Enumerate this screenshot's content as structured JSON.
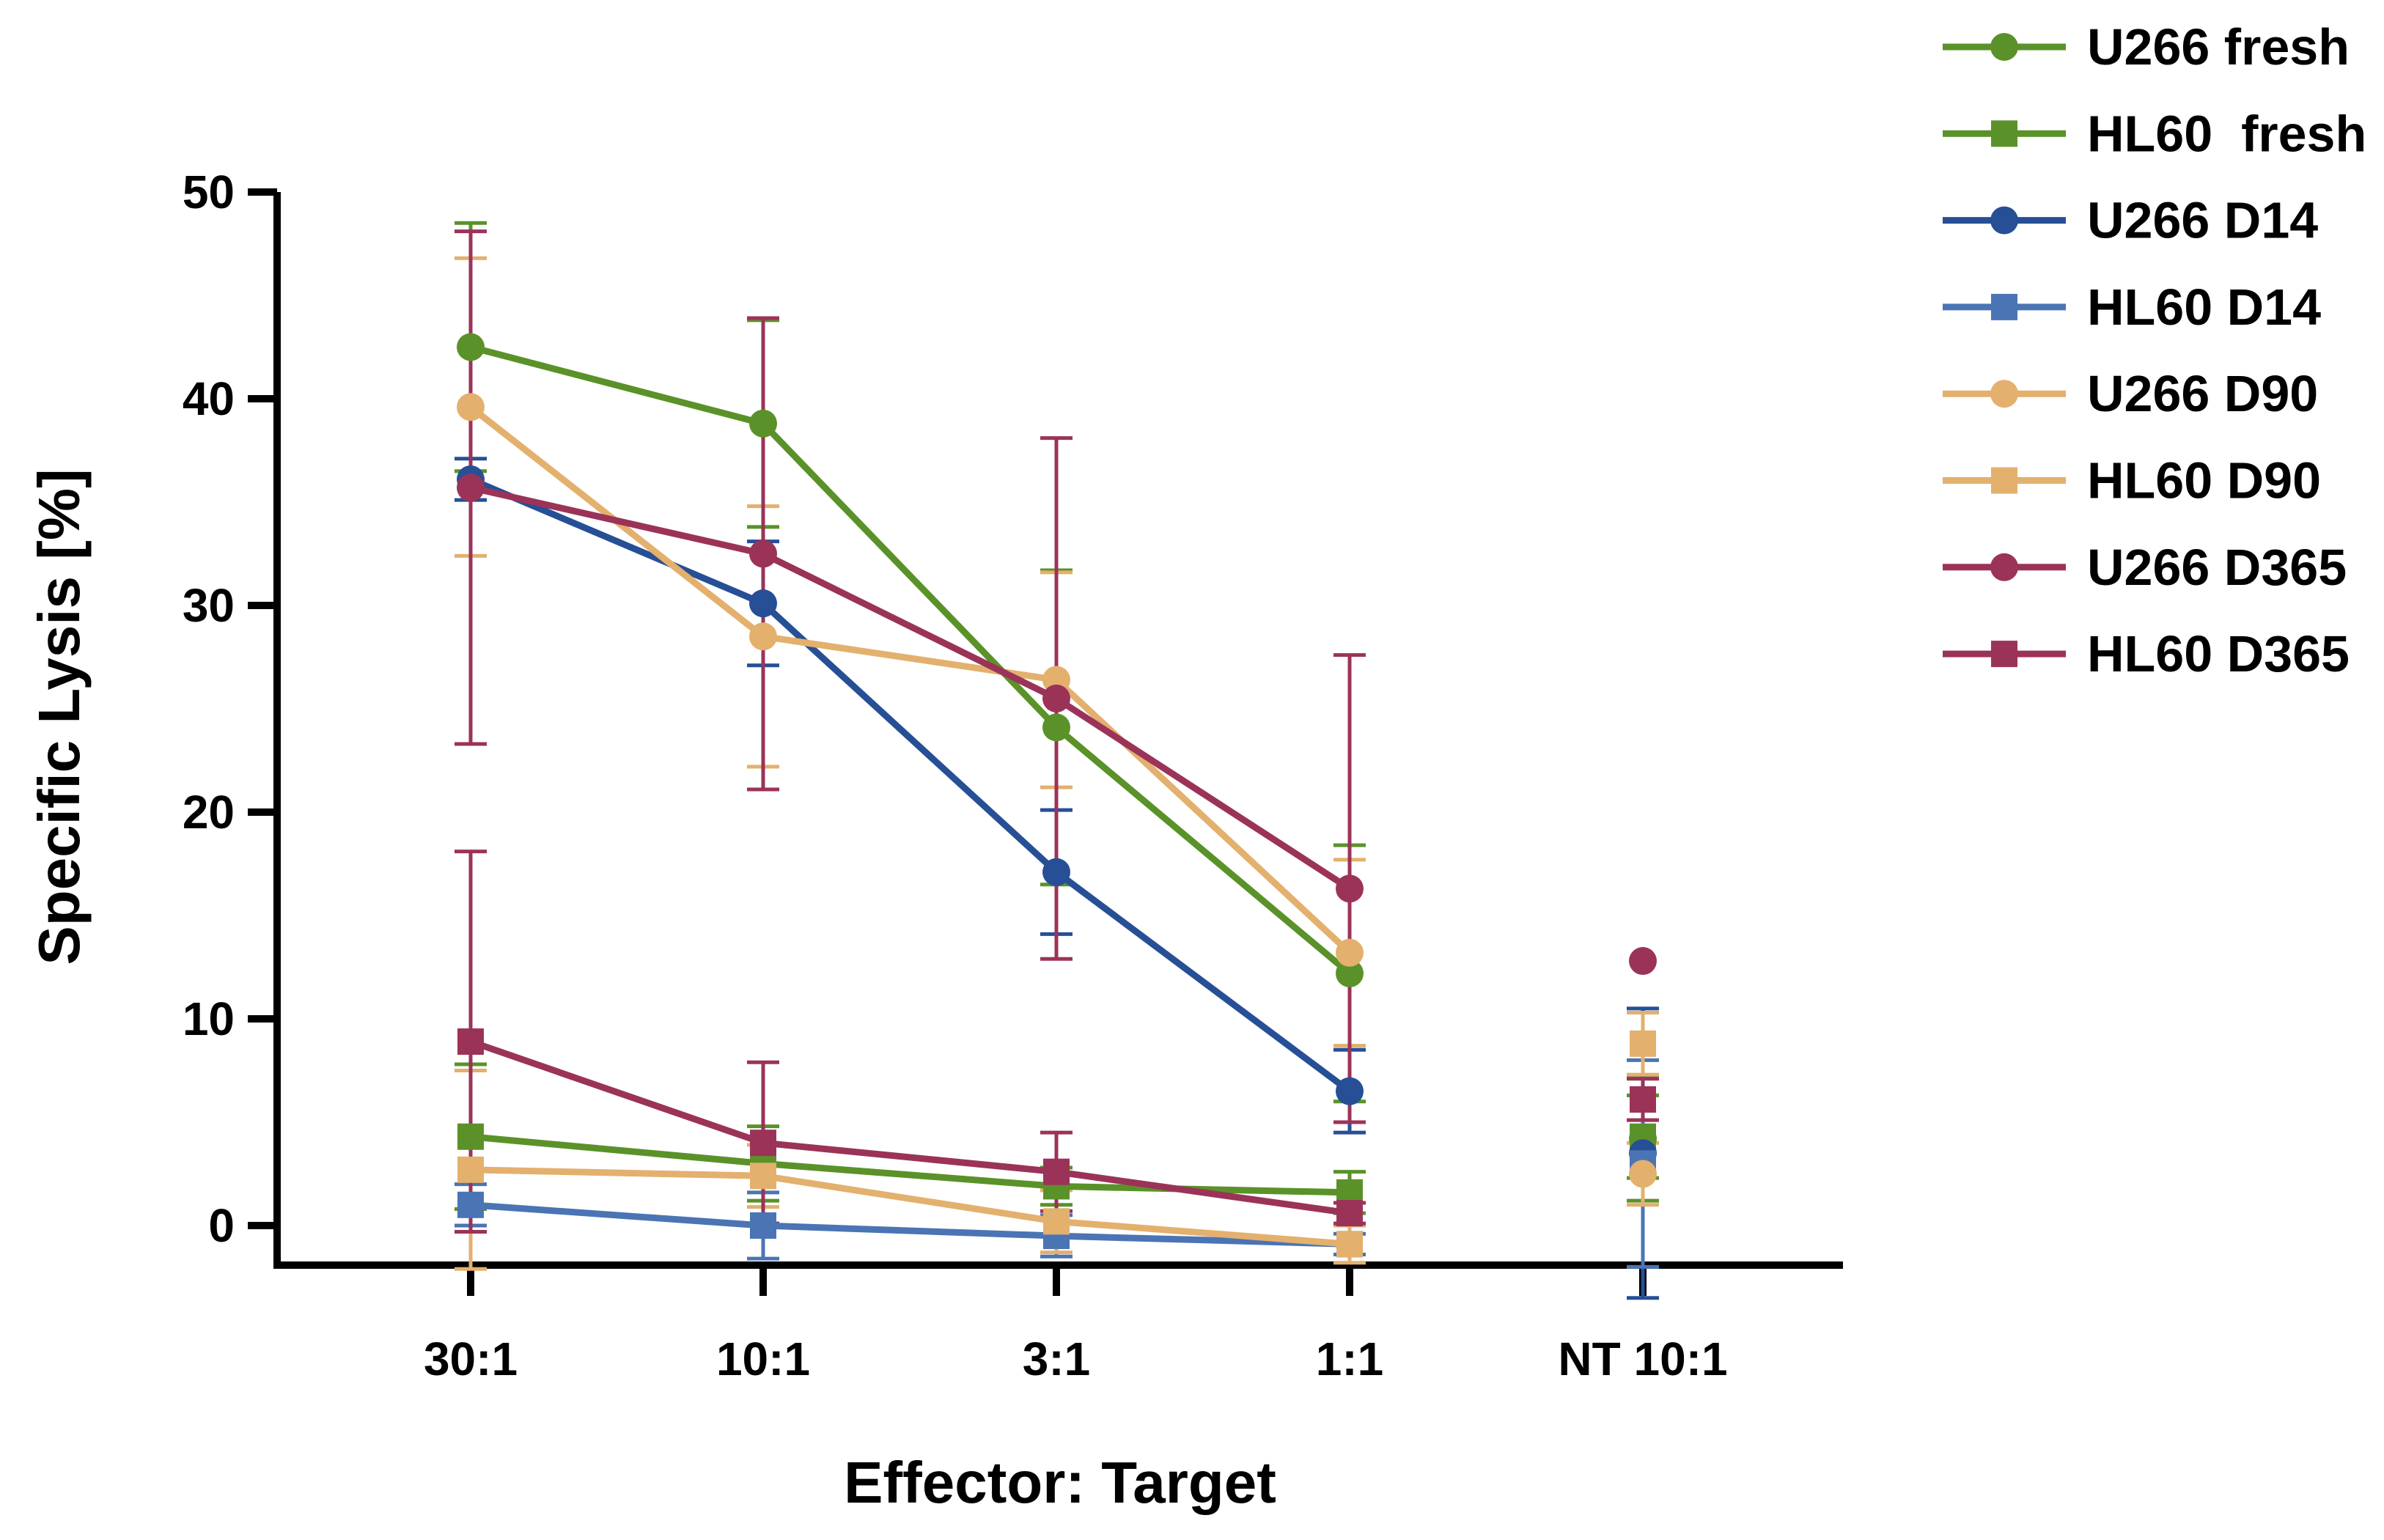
{
  "chart_data": {
    "type": "line",
    "title": "",
    "xlabel": "Effector: Target",
    "ylabel": "Specific Lysis [%]",
    "categories": [
      "30:1",
      "10:1",
      "3:1",
      "1:1",
      "NT 10:1"
    ],
    "ylim": [
      0,
      50
    ],
    "yticks": [
      0,
      10,
      20,
      30,
      40,
      50
    ],
    "legend_position": "top-right",
    "series": [
      {
        "name": "U266 fresh",
        "marker": "circle",
        "color": "#5a9229",
        "values": [
          42.5,
          38.8,
          24.1,
          12.2,
          4.2
        ],
        "error": [
          6.0,
          5.0,
          7.6,
          6.2,
          3.0
        ]
      },
      {
        "name": "HL60  fresh",
        "marker": "square",
        "color": "#5a9229",
        "values": [
          4.3,
          3.0,
          1.9,
          1.6,
          4.3
        ],
        "error": [
          3.5,
          1.8,
          0.9,
          1.0,
          2.0
        ]
      },
      {
        "name": "U266 D14",
        "marker": "circle",
        "color": "#264f96",
        "values": [
          36.1,
          30.1,
          17.1,
          6.5,
          3.5
        ],
        "error": [
          1.0,
          3.0,
          3.0,
          2.0,
          7.0
        ]
      },
      {
        "name": "HL60 D14",
        "marker": "square",
        "color": "#4a74b4",
        "values": [
          1.0,
          0.0,
          -0.5,
          -0.9,
          3.0
        ],
        "error": [
          1.0,
          1.6,
          1.0,
          0.5,
          5.0
        ]
      },
      {
        "name": "U266 D90",
        "marker": "circle",
        "color": "#e3b06e",
        "values": [
          39.6,
          28.5,
          26.4,
          13.2,
          2.5
        ],
        "error": [
          7.2,
          6.3,
          5.2,
          4.5,
          1.5
        ]
      },
      {
        "name": "HL60 D90",
        "marker": "square",
        "color": "#e3b06e",
        "values": [
          2.7,
          2.4,
          0.2,
          -0.9,
          8.8
        ],
        "error": [
          4.8,
          1.5,
          1.5,
          0.9,
          1.5
        ]
      },
      {
        "name": "U266 D365",
        "marker": "circle",
        "color": "#9b3359",
        "values": [
          35.7,
          32.5,
          25.5,
          16.3,
          12.8
        ],
        "error": [
          12.4,
          11.4,
          12.6,
          11.3,
          0.0
        ]
      },
      {
        "name": "HL60 D365",
        "marker": "square",
        "color": "#9b3359",
        "values": [
          8.9,
          4.0,
          2.6,
          0.6,
          6.1
        ],
        "error": [
          9.2,
          3.9,
          1.9,
          0.5,
          1.0
        ]
      }
    ],
    "connected_categories": 4
  }
}
